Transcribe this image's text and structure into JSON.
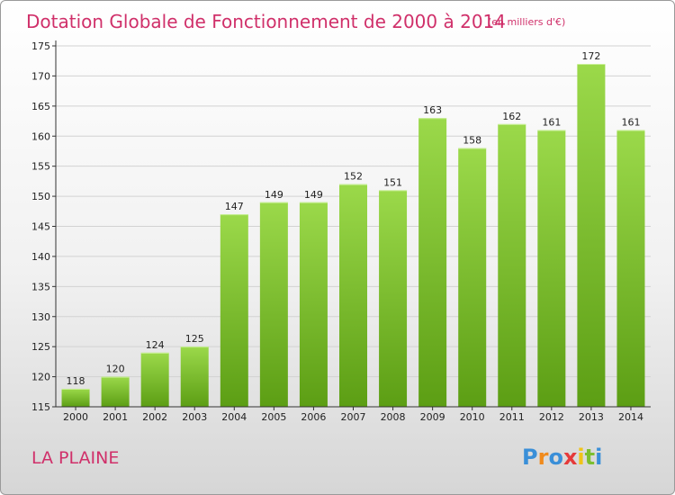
{
  "chart_data": {
    "type": "bar",
    "title": "Dotation Globale de Fonctionnement de 2000 à 2014",
    "subtitle": "(en milliers d'€)",
    "categories": [
      "2000",
      "2001",
      "2002",
      "2003",
      "2004",
      "2005",
      "2006",
      "2007",
      "2008",
      "2009",
      "2010",
      "2011",
      "2012",
      "2013",
      "2014"
    ],
    "values": [
      118,
      120,
      124,
      125,
      147,
      149,
      149,
      152,
      151,
      163,
      158,
      162,
      161,
      172,
      161
    ],
    "ylim": [
      115,
      175
    ],
    "yticks": [
      115,
      120,
      125,
      130,
      135,
      140,
      145,
      150,
      155,
      160,
      165,
      170,
      175
    ],
    "grid": true,
    "bar_color": "#7cbf2f"
  },
  "commune_name": "LA PLAINE",
  "logo": {
    "letters": [
      "P",
      "r",
      "o",
      "x",
      "i",
      "t",
      "i"
    ],
    "colors": [
      "#3a8fd8",
      "#f08a1c",
      "#3a8fd8",
      "#e53a3a",
      "#f0c419",
      "#7cbf2f",
      "#3a8fd8"
    ]
  }
}
